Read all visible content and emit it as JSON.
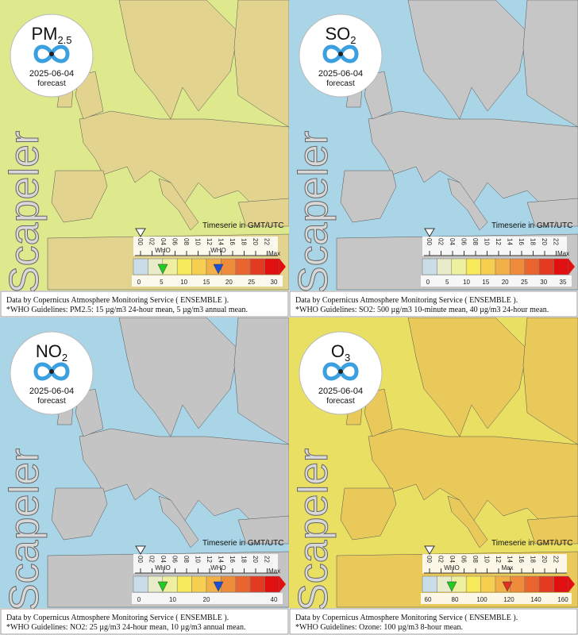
{
  "panels": [
    {
      "pollutant": "PM",
      "pollutant_sub": "2.5",
      "date": "2025-06-04",
      "forecast": "forecast",
      "brand": "Scapeler",
      "timeserie": "Timeserie in GMT/UTC",
      "hours": [
        "00",
        "02",
        "04",
        "06",
        "08",
        "10",
        "12",
        "14",
        "16",
        "18",
        "20",
        "22"
      ],
      "scale_ticks": [
        0,
        5,
        10,
        15,
        20,
        25,
        30
      ],
      "markers": [
        "WHO",
        "WHO"
      ],
      "max": "Max",
      "footer": [
        "Data by Copernicus Atmosphere Monitoring Service ( ENSEMBLE ).",
        "*WHO Guidelines: PM2.5: 15 µg/m3 24-hour mean, 5 µg/m3 annual mean."
      ]
    },
    {
      "pollutant": "SO",
      "pollutant_sub": "2",
      "date": "2025-06-04",
      "forecast": "forecast",
      "brand": "Scapeler",
      "timeserie": "Timeserie in GMT/UTC",
      "hours": [
        "00",
        "02",
        "04",
        "06",
        "08",
        "10",
        "12",
        "14",
        "16",
        "18",
        "20",
        "22"
      ],
      "scale_ticks": [
        0,
        5,
        10,
        15,
        20,
        25,
        30,
        35
      ],
      "markers": [],
      "max": "Max",
      "footer": [
        "Data by Copernicus Atmosphere Monitoring Service ( ENSEMBLE ).",
        "*WHO Guidelines: SO2: 500 µg/m3 10-minute mean, 40 µg/m3 24-hour mean."
      ]
    },
    {
      "pollutant": "NO",
      "pollutant_sub": "2",
      "date": "2025-06-04",
      "forecast": "forecast",
      "brand": "Scapeler",
      "timeserie": "Timeserie in GMT/UTC",
      "hours": [
        "00",
        "02",
        "04",
        "06",
        "08",
        "10",
        "12",
        "14",
        "16",
        "18",
        "20",
        "22"
      ],
      "scale_ticks": [
        0,
        10,
        20,
        40
      ],
      "markers": [
        "WHO",
        "WHO"
      ],
      "max": "Max",
      "footer": [
        "Data by Copernicus Atmosphere Monitoring Service ( ENSEMBLE ).",
        "*WHO Guidelines: NO2: 25 µg/m3 24-hour mean, 10 µg/m3 annual mean."
      ]
    },
    {
      "pollutant": "O",
      "pollutant_sub": "3",
      "date": "2025-06-04",
      "forecast": "forecast",
      "brand": "Scapeler",
      "timeserie": "Timeserie in GMT/UTC",
      "hours": [
        "00",
        "02",
        "04",
        "06",
        "08",
        "10",
        "12",
        "14",
        "16",
        "18",
        "20",
        "22"
      ],
      "scale_ticks": [
        60,
        80,
        100,
        120,
        140,
        160
      ],
      "markers": [
        "WHO",
        "Max"
      ],
      "max": "",
      "footer": [
        "Data by Copernicus Atmosphere Monitoring Service ( ENSEMBLE ).",
        "*WHO Guidelines: Ozone: 100 µg/m3 8-hour mean."
      ]
    }
  ]
}
